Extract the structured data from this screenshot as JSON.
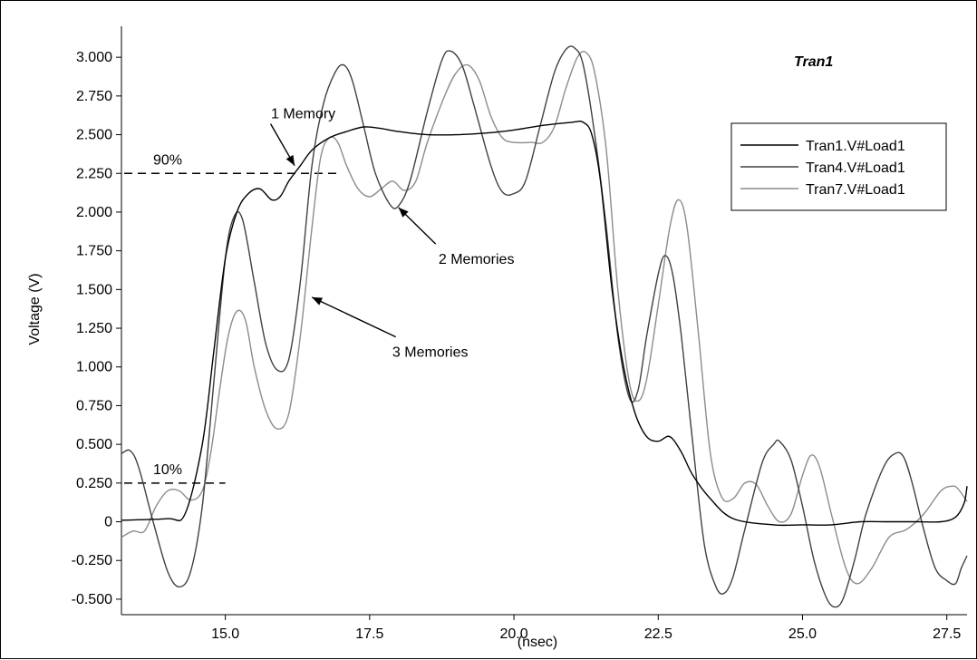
{
  "chart_data": {
    "type": "line",
    "title": "Tran1",
    "xlabel": "(nsec)",
    "ylabel": "Voltage (V)",
    "xlim": [
      13.2,
      27.85
    ],
    "ylim": [
      -0.6,
      3.2
    ],
    "x_ticks": [
      15.0,
      17.5,
      20.0,
      22.5,
      25.0,
      27.5
    ],
    "x_tick_labels": [
      "15.0",
      "17.5",
      "20.0",
      "22.5",
      "25.0",
      "27.5"
    ],
    "y_ticks": [
      3.0,
      2.75,
      2.5,
      2.25,
      2.0,
      1.75,
      1.5,
      1.25,
      1.0,
      0.75,
      0.5,
      0.25,
      0,
      -0.25,
      -0.5
    ],
    "y_tick_labels": [
      "3.000",
      "2.750",
      "2.500",
      "2.250",
      "2.000",
      "1.750",
      "1.500",
      "1.250",
      "1.000",
      "0.750",
      "0.500",
      "0.250",
      "0",
      "-0.250",
      "-0.500"
    ],
    "grid": false,
    "legend_position": "top-right",
    "series": [
      {
        "name": "Tran1.V#Load1",
        "color": "#000000",
        "points": [
          [
            13.2,
            0.01
          ],
          [
            14.0,
            0.02
          ],
          [
            14.3,
            0.05
          ],
          [
            14.6,
            0.5
          ],
          [
            14.8,
            1.1
          ],
          [
            15.0,
            1.7
          ],
          [
            15.2,
            2.0
          ],
          [
            15.4,
            2.12
          ],
          [
            15.6,
            2.15
          ],
          [
            15.8,
            2.08
          ],
          [
            15.95,
            2.1
          ],
          [
            16.1,
            2.2
          ],
          [
            16.3,
            2.3
          ],
          [
            16.5,
            2.4
          ],
          [
            16.8,
            2.48
          ],
          [
            17.1,
            2.52
          ],
          [
            17.4,
            2.55
          ],
          [
            17.7,
            2.54
          ],
          [
            18.0,
            2.52
          ],
          [
            18.5,
            2.5
          ],
          [
            19.0,
            2.5
          ],
          [
            19.5,
            2.51
          ],
          [
            20.0,
            2.53
          ],
          [
            20.5,
            2.56
          ],
          [
            21.0,
            2.58
          ],
          [
            21.2,
            2.58
          ],
          [
            21.35,
            2.5
          ],
          [
            21.5,
            2.2
          ],
          [
            21.7,
            1.5
          ],
          [
            21.9,
            1.0
          ],
          [
            22.1,
            0.7
          ],
          [
            22.3,
            0.55
          ],
          [
            22.5,
            0.52
          ],
          [
            22.7,
            0.55
          ],
          [
            22.9,
            0.45
          ],
          [
            23.1,
            0.3
          ],
          [
            23.4,
            0.15
          ],
          [
            23.8,
            0.02
          ],
          [
            24.5,
            -0.02
          ],
          [
            25.0,
            -0.02
          ],
          [
            25.5,
            -0.02
          ],
          [
            26.0,
            0.0
          ],
          [
            26.5,
            0.0
          ],
          [
            27.0,
            0.0
          ],
          [
            27.4,
            0.0
          ],
          [
            27.65,
            0.03
          ],
          [
            27.8,
            0.12
          ],
          [
            27.85,
            0.23
          ]
        ]
      },
      {
        "name": "Tran4.V#Load1",
        "color": "#404040",
        "points": [
          [
            13.2,
            0.44
          ],
          [
            13.35,
            0.46
          ],
          [
            13.5,
            0.35
          ],
          [
            13.75,
            0.0
          ],
          [
            14.0,
            -0.32
          ],
          [
            14.2,
            -0.42
          ],
          [
            14.4,
            -0.32
          ],
          [
            14.6,
            0.1
          ],
          [
            14.8,
            0.9
          ],
          [
            15.0,
            1.7
          ],
          [
            15.15,
            1.97
          ],
          [
            15.3,
            1.95
          ],
          [
            15.5,
            1.55
          ],
          [
            15.7,
            1.15
          ],
          [
            15.9,
            0.98
          ],
          [
            16.1,
            1.05
          ],
          [
            16.3,
            1.55
          ],
          [
            16.5,
            2.3
          ],
          [
            16.7,
            2.7
          ],
          [
            16.9,
            2.9
          ],
          [
            17.05,
            2.95
          ],
          [
            17.2,
            2.85
          ],
          [
            17.4,
            2.55
          ],
          [
            17.6,
            2.25
          ],
          [
            17.85,
            2.05
          ],
          [
            18.0,
            2.04
          ],
          [
            18.2,
            2.2
          ],
          [
            18.5,
            2.65
          ],
          [
            18.75,
            2.98
          ],
          [
            18.9,
            3.04
          ],
          [
            19.1,
            2.95
          ],
          [
            19.3,
            2.7
          ],
          [
            19.6,
            2.3
          ],
          [
            19.8,
            2.13
          ],
          [
            20.0,
            2.12
          ],
          [
            20.2,
            2.2
          ],
          [
            20.45,
            2.55
          ],
          [
            20.7,
            2.9
          ],
          [
            20.9,
            3.05
          ],
          [
            21.05,
            3.06
          ],
          [
            21.2,
            2.95
          ],
          [
            21.4,
            2.5
          ],
          [
            21.6,
            1.9
          ],
          [
            21.8,
            1.2
          ],
          [
            22.0,
            0.8
          ],
          [
            22.15,
            0.85
          ],
          [
            22.3,
            1.2
          ],
          [
            22.5,
            1.6
          ],
          [
            22.62,
            1.72
          ],
          [
            22.75,
            1.6
          ],
          [
            22.9,
            1.2
          ],
          [
            23.1,
            0.5
          ],
          [
            23.3,
            -0.15
          ],
          [
            23.5,
            -0.42
          ],
          [
            23.65,
            -0.46
          ],
          [
            23.8,
            -0.35
          ],
          [
            24.0,
            -0.05
          ],
          [
            24.3,
            0.38
          ],
          [
            24.5,
            0.5
          ],
          [
            24.6,
            0.52
          ],
          [
            24.8,
            0.4
          ],
          [
            25.0,
            0.1
          ],
          [
            25.2,
            -0.25
          ],
          [
            25.4,
            -0.48
          ],
          [
            25.55,
            -0.55
          ],
          [
            25.7,
            -0.5
          ],
          [
            25.9,
            -0.25
          ],
          [
            26.1,
            0.05
          ],
          [
            26.4,
            0.35
          ],
          [
            26.6,
            0.44
          ],
          [
            26.75,
            0.42
          ],
          [
            26.9,
            0.25
          ],
          [
            27.1,
            -0.05
          ],
          [
            27.3,
            -0.3
          ],
          [
            27.5,
            -0.38
          ],
          [
            27.65,
            -0.4
          ],
          [
            27.75,
            -0.3
          ],
          [
            27.85,
            -0.22
          ]
        ]
      },
      {
        "name": "Tran7.V#Load1",
        "color": "#8c8c8c",
        "points": [
          [
            13.2,
            -0.1
          ],
          [
            13.4,
            -0.06
          ],
          [
            13.6,
            -0.06
          ],
          [
            13.8,
            0.1
          ],
          [
            14.0,
            0.2
          ],
          [
            14.2,
            0.2
          ],
          [
            14.4,
            0.14
          ],
          [
            14.6,
            0.2
          ],
          [
            14.75,
            0.45
          ],
          [
            14.9,
            0.85
          ],
          [
            15.05,
            1.2
          ],
          [
            15.2,
            1.36
          ],
          [
            15.35,
            1.3
          ],
          [
            15.5,
            1.0
          ],
          [
            15.7,
            0.72
          ],
          [
            15.9,
            0.6
          ],
          [
            16.1,
            0.7
          ],
          [
            16.3,
            1.2
          ],
          [
            16.5,
            1.9
          ],
          [
            16.65,
            2.35
          ],
          [
            16.8,
            2.48
          ],
          [
            16.95,
            2.45
          ],
          [
            17.1,
            2.3
          ],
          [
            17.3,
            2.15
          ],
          [
            17.5,
            2.1
          ],
          [
            17.7,
            2.15
          ],
          [
            17.9,
            2.2
          ],
          [
            18.1,
            2.14
          ],
          [
            18.3,
            2.2
          ],
          [
            18.5,
            2.45
          ],
          [
            18.8,
            2.75
          ],
          [
            19.0,
            2.9
          ],
          [
            19.2,
            2.95
          ],
          [
            19.4,
            2.85
          ],
          [
            19.6,
            2.62
          ],
          [
            19.8,
            2.48
          ],
          [
            20.0,
            2.45
          ],
          [
            20.3,
            2.45
          ],
          [
            20.5,
            2.45
          ],
          [
            20.7,
            2.55
          ],
          [
            20.9,
            2.8
          ],
          [
            21.1,
            3.0
          ],
          [
            21.25,
            3.03
          ],
          [
            21.4,
            2.9
          ],
          [
            21.6,
            2.4
          ],
          [
            21.8,
            1.5
          ],
          [
            22.0,
            0.9
          ],
          [
            22.15,
            0.78
          ],
          [
            22.3,
            0.92
          ],
          [
            22.5,
            1.4
          ],
          [
            22.7,
            1.9
          ],
          [
            22.85,
            2.08
          ],
          [
            23.0,
            1.9
          ],
          [
            23.2,
            1.2
          ],
          [
            23.4,
            0.45
          ],
          [
            23.6,
            0.16
          ],
          [
            23.8,
            0.15
          ],
          [
            24.0,
            0.25
          ],
          [
            24.2,
            0.24
          ],
          [
            24.4,
            0.1
          ],
          [
            24.6,
            0.0
          ],
          [
            24.8,
            0.05
          ],
          [
            25.0,
            0.3
          ],
          [
            25.15,
            0.43
          ],
          [
            25.3,
            0.35
          ],
          [
            25.5,
            0.05
          ],
          [
            25.75,
            -0.3
          ],
          [
            25.95,
            -0.4
          ],
          [
            26.2,
            -0.3
          ],
          [
            26.5,
            -0.1
          ],
          [
            26.8,
            -0.05
          ],
          [
            27.1,
            0.05
          ],
          [
            27.4,
            0.2
          ],
          [
            27.6,
            0.23
          ],
          [
            27.7,
            0.21
          ],
          [
            27.85,
            0.13
          ]
        ]
      }
    ],
    "threshold_lines": [
      {
        "label": "90%",
        "y": 2.25,
        "x_start": 13.2,
        "x_end": 17.0
      },
      {
        "label": "10%",
        "y": 0.25,
        "x_start": 13.2,
        "x_end": 15.0
      }
    ],
    "annotations": [
      {
        "text": "1 Memory",
        "text_x": 16.35,
        "text_y": 2.64,
        "target_x": 16.2,
        "target_y": 2.3
      },
      {
        "text": "2 Memories",
        "text_x": 19.35,
        "text_y": 1.7,
        "target_x": 18.0,
        "target_y": 2.03
      },
      {
        "text": "3 Memories",
        "text_x": 18.55,
        "text_y": 1.1,
        "target_x": 16.5,
        "target_y": 1.45
      }
    ]
  }
}
